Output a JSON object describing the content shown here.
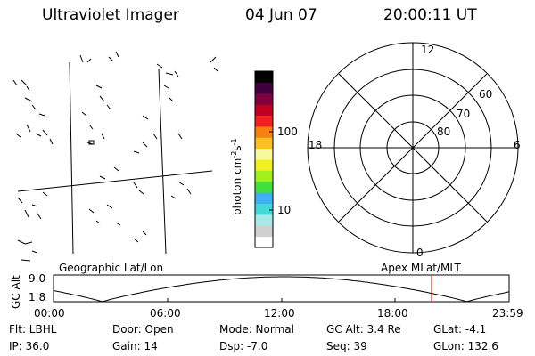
{
  "header": {
    "instrument": "Ultraviolet Imager",
    "date": "04 Jun 07",
    "time": "20:00:11 UT"
  },
  "colorbar": {
    "unit_label": "photon cm",
    "unit_exp1": "-2",
    "unit_mid": "s",
    "unit_exp2": "-1",
    "tick_labels": [
      "100",
      "10"
    ],
    "colors": [
      "#ffffff",
      "#d0d0d0",
      "#a8e8e8",
      "#40d8d8",
      "#40b0f0",
      "#40e040",
      "#a0f020",
      "#f0f020",
      "#f8f8a0",
      "#f8c020",
      "#f88010",
      "#f02020",
      "#c00020",
      "#800040",
      "#400040",
      "#000000"
    ]
  },
  "polar": {
    "mlt_labels": {
      "top": "12",
      "left": "18",
      "right": "6",
      "bottom": "0"
    },
    "lat_labels": [
      "60",
      "70",
      "80"
    ]
  },
  "track": {
    "left_title": "Geographic Lat/Lon",
    "right_title": "Apex MLat/MLT",
    "axis_title": "GC Alt",
    "y_max": "9.0",
    "y_min": "1.8",
    "x_ticks": [
      "00:00",
      "06:00",
      "12:00",
      "18:00",
      "23:59"
    ],
    "marker_color": "#e00000",
    "line_color": "#000000"
  },
  "info": {
    "filter": "Flt: LBHL",
    "ip": "IP: 36.0",
    "door": "Door: Open",
    "gain": "Gain: 14",
    "mode": "Mode: Normal",
    "dsp": "Dsp:   -7.0",
    "gcalt": "GC Alt: 3.4 Re",
    "seq": "Seq: 39",
    "glat": "GLat:   -4.1",
    "glon": "GLon: 132.6"
  }
}
